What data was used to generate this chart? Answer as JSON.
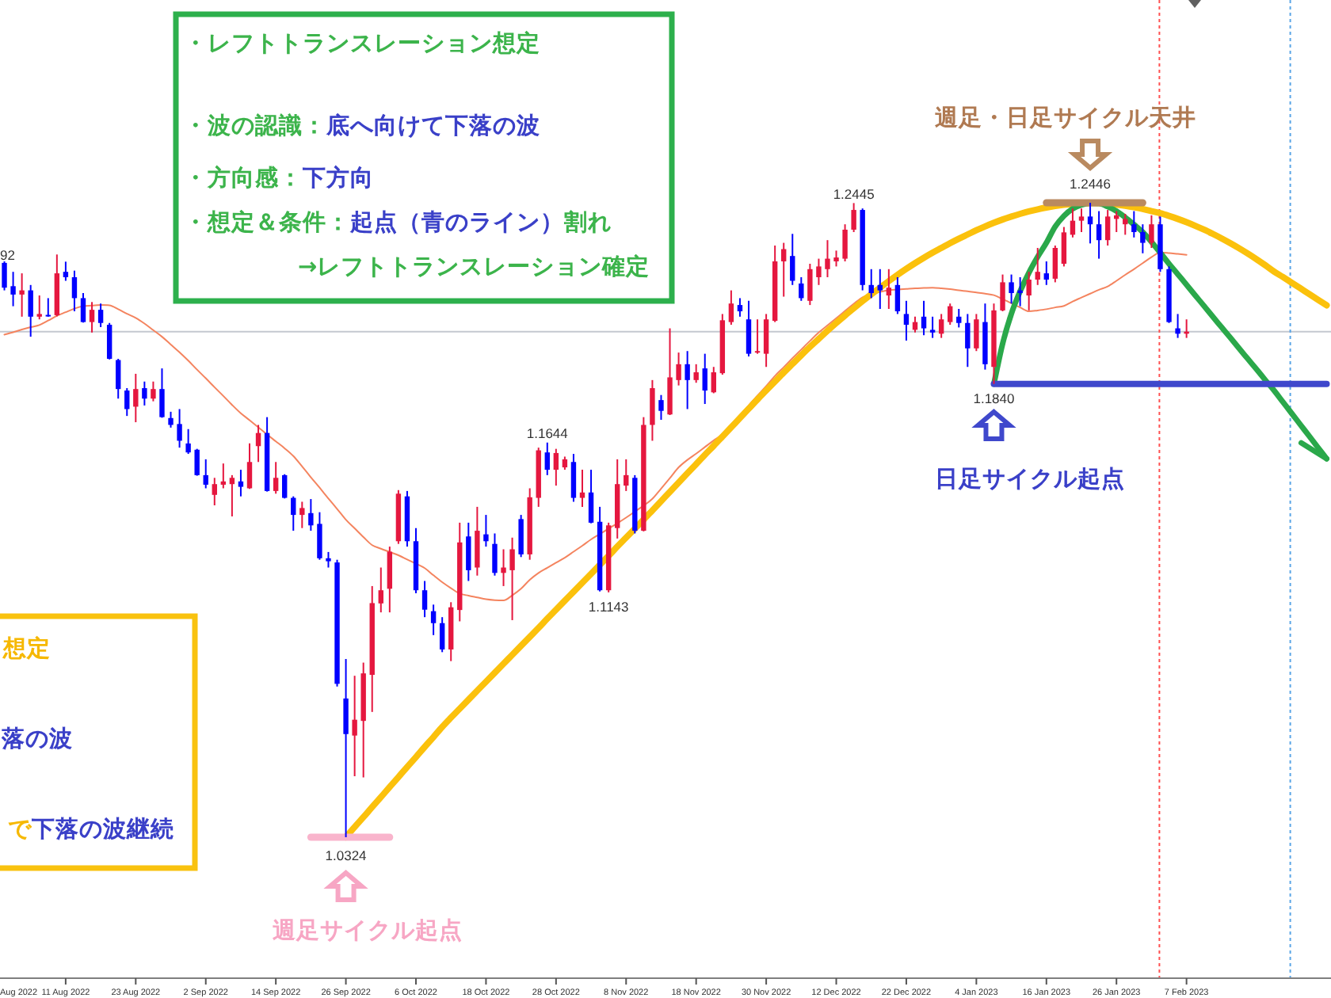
{
  "chart_data": {
    "type": "candlestick",
    "categories": [
      null,
      null,
      null,
      null,
      null,
      null,
      null,
      "11 Aug 2022",
      null,
      null,
      null,
      null,
      null,
      null,
      null,
      "23 Aug 2022",
      null,
      null,
      null,
      null,
      null,
      null,
      null,
      "2 Sep 2022",
      null,
      null,
      null,
      null,
      null,
      null,
      null,
      "14 Sep 2022",
      null,
      null,
      null,
      null,
      null,
      null,
      null,
      "26 Sep 2022",
      null,
      null,
      null,
      null,
      null,
      null,
      null,
      "6 Oct 2022",
      null,
      null,
      null,
      null,
      null,
      null,
      null,
      "18 Oct 2022",
      null,
      null,
      null,
      null,
      null,
      null,
      null,
      "28 Oct 2022",
      null,
      null,
      null,
      null,
      null,
      null,
      null,
      "8 Nov 2022",
      null,
      null,
      null,
      null,
      null,
      null,
      null,
      "18 Nov 2022",
      null,
      null,
      null,
      null,
      null,
      null,
      null,
      "30 Nov 2022",
      null,
      null,
      null,
      null,
      null,
      null,
      null,
      "12 Dec 2022",
      null,
      null,
      null,
      null,
      null,
      null,
      null,
      "22 Dec 2022",
      null,
      null,
      null,
      null,
      null,
      null,
      null,
      "4 Jan 2023",
      null,
      null,
      null,
      null,
      null,
      null,
      null,
      "16 Jan 2023",
      null,
      null,
      null,
      null,
      null,
      null,
      null,
      "26 Jan 2023",
      null,
      null,
      null,
      null,
      null,
      null,
      null,
      "7 Feb 2023",
      null,
      null,
      null,
      null,
      null,
      null,
      null,
      null,
      null,
      null,
      null,
      null,
      null,
      null,
      null,
      null
    ],
    "tick_labels": "x",
    "ohlc": [
      [
        1.2245,
        1.225,
        1.2153,
        1.2162
      ],
      [
        1.2167,
        1.2215,
        1.21,
        1.2139
      ],
      [
        1.2139,
        1.221,
        1.2065,
        1.2153
      ],
      [
        1.2153,
        1.2171,
        1.1998,
        1.2065
      ],
      [
        1.2065,
        1.2136,
        1.2056,
        1.2074
      ],
      [
        1.2071,
        1.2127,
        1.2065,
        1.2068
      ],
      [
        1.207,
        1.2273,
        1.2066,
        1.221
      ],
      [
        1.2215,
        1.2249,
        1.2185,
        1.2197
      ],
      [
        1.2197,
        1.2219,
        1.2083,
        1.2127
      ],
      [
        1.2127,
        1.2144,
        1.2045,
        1.2047
      ],
      [
        1.2047,
        1.2114,
        1.2012,
        1.2088
      ],
      [
        1.2088,
        1.2109,
        1.203,
        1.2044
      ],
      [
        1.2038,
        1.2044,
        1.1922,
        1.1924
      ],
      [
        1.192,
        1.1924,
        1.1791,
        1.1823
      ],
      [
        1.1818,
        1.1826,
        1.1733,
        1.1756
      ],
      [
        1.1764,
        1.1874,
        1.1712,
        1.1823
      ],
      [
        1.1826,
        1.1848,
        1.1768,
        1.1791
      ],
      [
        1.1791,
        1.1848,
        1.1782,
        1.1823
      ],
      [
        1.1823,
        1.1892,
        1.1727,
        1.1729
      ],
      [
        1.1726,
        1.1747,
        1.1694,
        1.1703
      ],
      [
        1.1706,
        1.1756,
        1.1627,
        1.165
      ],
      [
        1.1641,
        1.1689,
        1.1606,
        1.1611
      ],
      [
        1.162,
        1.1623,
        1.1533,
        1.1535
      ],
      [
        1.1535,
        1.1588,
        1.1491,
        1.1503
      ],
      [
        1.1469,
        1.1526,
        1.1434,
        1.1505
      ],
      [
        1.1503,
        1.1574,
        1.1491,
        1.1514
      ],
      [
        1.1505,
        1.1535,
        1.1397,
        1.1526
      ],
      [
        1.1514,
        1.1553,
        1.1464,
        1.1496
      ],
      [
        1.1491,
        1.1641,
        1.1489,
        1.1579
      ],
      [
        1.1632,
        1.1703,
        1.1579,
        1.1676
      ],
      [
        1.1676,
        1.1729,
        1.148,
        1.1482
      ],
      [
        1.1482,
        1.1579,
        1.1473,
        1.1526
      ],
      [
        1.1535,
        1.1538,
        1.1457,
        1.1459
      ],
      [
        1.1459,
        1.1464,
        1.1349,
        1.1402
      ],
      [
        1.1402,
        1.1446,
        1.1358,
        1.1425
      ],
      [
        1.1408,
        1.1455,
        1.1349,
        1.1367
      ],
      [
        1.1372,
        1.1411,
        1.1252,
        1.1257
      ],
      [
        1.1257,
        1.1278,
        1.1226,
        1.1247
      ],
      [
        1.1243,
        1.1252,
        1.0828,
        1.0837
      ],
      [
        1.0788,
        1.092,
        1.0324,
        1.0669
      ],
      [
        1.0664,
        1.0864,
        1.0528,
        1.0717
      ],
      [
        1.0713,
        1.0908,
        1.0524,
        1.0872
      ],
      [
        1.0867,
        1.1164,
        1.0743,
        1.1107
      ],
      [
        1.1106,
        1.1226,
        1.1076,
        1.115
      ],
      [
        1.1155,
        1.1296,
        1.1076,
        1.1279
      ],
      [
        1.1314,
        1.1485,
        1.1305,
        1.1473
      ],
      [
        1.1464,
        1.1482,
        1.1296,
        1.1314
      ],
      [
        1.1314,
        1.1358,
        1.114,
        1.115
      ],
      [
        1.115,
        1.1181,
        1.106,
        1.1085
      ],
      [
        1.108,
        1.1102,
        1.1,
        1.104
      ],
      [
        1.104,
        1.106,
        1.0943,
        1.0952
      ],
      [
        1.0952,
        1.111,
        1.0913,
        1.1093
      ],
      [
        1.1084,
        1.1376,
        1.1046,
        1.131
      ],
      [
        1.133,
        1.1376,
        1.1181,
        1.1217
      ],
      [
        1.1226,
        1.1429,
        1.1199,
        1.1349
      ],
      [
        1.1337,
        1.1402,
        1.1296,
        1.1314
      ],
      [
        1.1305,
        1.134,
        1.1199,
        1.1208
      ],
      [
        1.1208,
        1.1287,
        1.1164,
        1.1226
      ],
      [
        1.1217,
        1.1326,
        1.105,
        1.1287
      ],
      [
        1.1388,
        1.1402,
        1.1261,
        1.127
      ],
      [
        1.127,
        1.1491,
        1.1252,
        1.1461
      ],
      [
        1.1459,
        1.1627,
        1.1429,
        1.1618
      ],
      [
        1.1611,
        1.1644,
        1.1535,
        1.1553
      ],
      [
        1.1553,
        1.1623,
        1.15,
        1.1609
      ],
      [
        1.1561,
        1.1597,
        1.1553,
        1.1588
      ],
      [
        1.1579,
        1.1606,
        1.1446,
        1.1459
      ],
      [
        1.1459,
        1.1553,
        1.1429,
        1.1477
      ],
      [
        1.1477,
        1.1553,
        1.1374,
        1.1376
      ],
      [
        1.1379,
        1.1429,
        1.1146,
        1.115
      ],
      [
        1.115,
        1.1376,
        1.1143,
        1.1367
      ],
      [
        1.1358,
        1.1588,
        1.1323,
        1.1505
      ],
      [
        1.15,
        1.1588,
        1.1482,
        1.1535
      ],
      [
        1.1526,
        1.1535,
        1.134,
        1.1349
      ],
      [
        1.1349,
        1.1729,
        1.1347,
        1.1703
      ],
      [
        1.1703,
        1.1853,
        1.165,
        1.1826
      ],
      [
        1.1786,
        1.1803,
        1.172,
        1.175
      ],
      [
        1.1738,
        1.2026,
        1.1736,
        1.1862
      ],
      [
        1.1853,
        1.1945,
        1.1835,
        1.1906
      ],
      [
        1.1906,
        1.195,
        1.1756,
        1.1853
      ],
      [
        1.1853,
        1.1906,
        1.1844,
        1.1879
      ],
      [
        1.1892,
        1.1941,
        1.1773,
        1.1818
      ],
      [
        1.1812,
        1.1897,
        1.1809,
        1.1879
      ],
      [
        1.1876,
        1.2074,
        1.1871,
        1.2053
      ],
      [
        1.2047,
        1.2153,
        1.2038,
        1.2109
      ],
      [
        1.2104,
        1.2127,
        1.2065,
        1.2083
      ],
      [
        1.2056,
        1.2118,
        1.1932,
        1.1941
      ],
      [
        1.1945,
        1.2056,
        1.1941,
        1.195
      ],
      [
        1.1941,
        1.2074,
        1.1897,
        1.2056
      ],
      [
        1.2051,
        1.2303,
        1.2047,
        1.225
      ],
      [
        1.225,
        1.2312,
        1.2132,
        1.2291
      ],
      [
        1.2268,
        1.2342,
        1.2171,
        1.2185
      ],
      [
        1.2176,
        1.2197,
        1.2118,
        1.2127
      ],
      [
        1.2118,
        1.2242,
        1.2104,
        1.2224
      ],
      [
        1.2197,
        1.2259,
        1.2171,
        1.2233
      ],
      [
        1.2224,
        1.2321,
        1.2197,
        1.2259
      ],
      [
        1.225,
        1.2286,
        1.2233,
        1.2263
      ],
      [
        1.2259,
        1.2374,
        1.225,
        1.2356
      ],
      [
        1.2356,
        1.2445,
        1.2348,
        1.2422
      ],
      [
        1.2422,
        1.2427,
        1.2153,
        1.2171
      ],
      [
        1.2171,
        1.2224,
        1.2127,
        1.2144
      ],
      [
        1.2171,
        1.2224,
        1.2091,
        1.2153
      ],
      [
        1.2136,
        1.2224,
        1.2091,
        1.2162
      ],
      [
        1.2171,
        1.2197,
        1.2074,
        1.2083
      ],
      [
        1.2074,
        1.2118,
        1.1985,
        1.2038
      ],
      [
        1.2021,
        1.2065,
        1.2012,
        1.2047
      ],
      [
        1.2065,
        1.2118,
        1.2003,
        1.2026
      ],
      [
        1.2021,
        1.2065,
        1.1994,
        1.2012
      ],
      [
        1.2008,
        1.2074,
        1.1994,
        1.2056
      ],
      [
        1.2047,
        1.2109,
        1.2038,
        1.21
      ],
      [
        1.2065,
        1.2091,
        1.2029,
        1.2044
      ],
      [
        1.2044,
        1.2074,
        1.1897,
        1.1959
      ],
      [
        1.1959,
        1.2074,
        1.195,
        1.2056
      ],
      [
        1.2047,
        1.2109,
        1.1888,
        1.1906
      ],
      [
        1.1897,
        1.2109,
        1.184,
        1.2086
      ],
      [
        1.2086,
        1.2206,
        1.2083,
        1.218
      ],
      [
        1.218,
        1.2206,
        1.2109,
        1.2144
      ],
      [
        1.2153,
        1.2197,
        1.21,
        1.2144
      ],
      [
        1.2136,
        1.2215,
        1.2086,
        1.2189
      ],
      [
        1.2189,
        1.2295,
        1.2171,
        1.2215
      ],
      [
        1.221,
        1.225,
        1.2171,
        1.2189
      ],
      [
        1.2192,
        1.2303,
        1.218,
        1.2295
      ],
      [
        1.2242,
        1.2365,
        1.2233,
        1.2347
      ],
      [
        1.2339,
        1.2427,
        1.233,
        1.2386
      ],
      [
        1.2386,
        1.2427,
        1.2348,
        1.24
      ],
      [
        1.24,
        1.2446,
        1.231,
        1.2374
      ],
      [
        1.2374,
        1.2418,
        1.2259,
        1.2321
      ],
      [
        1.2321,
        1.2422,
        1.2303,
        1.24
      ],
      [
        1.2392,
        1.2418,
        1.2348,
        1.2404
      ],
      [
        1.2374,
        1.2409,
        1.2339,
        1.2392
      ],
      [
        1.2374,
        1.2418,
        1.233,
        1.2348
      ],
      [
        1.2348,
        1.2374,
        1.2277,
        1.2312
      ],
      [
        1.2312,
        1.2404,
        1.2295,
        1.2374
      ],
      [
        1.2374,
        1.24,
        1.2215,
        1.2224
      ],
      [
        1.2224,
        1.2233,
        1.2044,
        1.2047
      ],
      [
        1.2026,
        1.2074,
        1.1994,
        1.2008
      ],
      [
        1.2008,
        1.2056,
        1.1994,
        1.2015
      ],
      null,
      null,
      null,
      null,
      null,
      null,
      null,
      null,
      null,
      null,
      null,
      null,
      null,
      null,
      null,
      null
    ],
    "colors": [
      "#0000ff",
      "#0000ff",
      "#e5173f",
      "#0000ff",
      "#e5173f",
      "#0000ff",
      "#e5173f",
      "#0000ff",
      "#0000ff",
      "#0000ff",
      "#e5173f",
      "#0000ff",
      "#0000ff",
      "#0000ff",
      "#0000ff",
      "#e5173f",
      "#0000ff",
      "#e5173f",
      "#0000ff",
      "#0000ff",
      "#0000ff",
      "#0000ff",
      "#0000ff",
      "#0000ff",
      "#e5173f",
      "#e5173f",
      "#e5173f",
      "#0000ff",
      "#e5173f",
      "#e5173f",
      "#0000ff",
      "#e5173f",
      "#0000ff",
      "#0000ff",
      "#e5173f",
      "#0000ff",
      "#0000ff",
      "#0000ff",
      "#0000ff",
      "#0000ff",
      "#e5173f",
      "#e5173f",
      "#e5173f",
      "#e5173f",
      "#e5173f",
      "#e5173f",
      "#0000ff",
      "#0000ff",
      "#0000ff",
      "#0000ff",
      "#0000ff",
      "#e5173f",
      "#e5173f",
      "#0000ff",
      "#e5173f",
      "#0000ff",
      "#0000ff",
      "#e5173f",
      "#e5173f",
      "#0000ff",
      "#e5173f",
      "#e5173f",
      "#0000ff",
      "#e5173f",
      "#e5173f",
      "#0000ff",
      "#e5173f",
      "#0000ff",
      "#0000ff",
      "#e5173f",
      "#e5173f",
      "#e5173f",
      "#0000ff",
      "#e5173f",
      "#e5173f",
      "#0000ff",
      "#e5173f",
      "#e5173f",
      "#0000ff",
      "#e5173f",
      "#0000ff",
      "#e5173f",
      "#e5173f",
      "#e5173f",
      "#0000ff",
      "#0000ff",
      "#e5173f",
      "#e5173f",
      "#e5173f",
      "#e5173f",
      "#0000ff",
      "#0000ff",
      "#e5173f",
      "#e5173f",
      "#e5173f",
      "#e5173f",
      "#e5173f",
      "#e5173f",
      "#0000ff",
      "#0000ff",
      "#0000ff",
      "#e5173f",
      "#0000ff",
      "#0000ff",
      "#e5173f",
      "#0000ff",
      "#0000ff",
      "#e5173f",
      "#e5173f",
      "#0000ff",
      "#0000ff",
      "#e5173f",
      "#0000ff",
      "#e5173f",
      "#e5173f",
      "#0000ff",
      "#0000ff",
      "#e5173f",
      "#e5173f",
      "#0000ff",
      "#e5173f",
      "#e5173f",
      "#e5173f",
      "#e5173f",
      "#0000ff",
      "#0000ff",
      "#e5173f",
      "#e5173f",
      "#e5173f",
      "#0000ff",
      "#0000ff",
      "#e5173f",
      "#0000ff",
      "#0000ff",
      "#0000ff",
      "#e5173f",
      null,
      null,
      null,
      null,
      null,
      null,
      null,
      null,
      null,
      null,
      null,
      null,
      null,
      null,
      null,
      null
    ],
    "series": [
      {
        "type": "line",
        "color": "#f4845f",
        "values": [
          1.2005,
          1.2013,
          1.2022,
          1.203,
          1.2037,
          1.2052,
          1.2068,
          1.208,
          1.2092,
          1.21,
          1.2102,
          1.2104,
          1.2103,
          1.209,
          1.2075,
          1.2061,
          1.2042,
          1.202,
          1.1998,
          1.1972,
          1.1946,
          1.1918,
          1.1888,
          1.1859,
          1.1829,
          1.18,
          1.177,
          1.1742,
          1.1719,
          1.1695,
          1.1671,
          1.1648,
          1.1625,
          1.1599,
          1.1564,
          1.1528,
          1.1493,
          1.1457,
          1.1422,
          1.1386,
          1.1357,
          1.1328,
          1.1301,
          1.1289,
          1.1278,
          1.1267,
          1.1253,
          1.1239,
          1.1224,
          1.12,
          1.1177,
          1.1157,
          1.1139,
          1.1132,
          1.1126,
          1.112,
          1.1117,
          1.1116,
          1.1133,
          1.1155,
          1.1185,
          1.1208,
          1.1225,
          1.1242,
          1.1259,
          1.1279,
          1.1299,
          1.132,
          1.1338,
          1.1356,
          1.1374,
          1.1393,
          1.1413,
          1.1433,
          1.1456,
          1.149,
          1.1525,
          1.1561,
          1.1586,
          1.1607,
          1.1629,
          1.1651,
          1.1672,
          1.1703,
          1.1735,
          1.1768,
          1.1801,
          1.1833,
          1.1867,
          1.1896,
          1.1926,
          1.1955,
          1.1984,
          1.2012,
          1.2036,
          1.206,
          1.2084,
          1.2108,
          1.213,
          1.2139,
          1.2148,
          1.2154,
          1.2156,
          1.2158,
          1.216,
          1.2161,
          1.2162,
          1.216,
          1.2157,
          1.2153,
          1.215,
          1.2146,
          1.2142,
          1.2137,
          1.2124,
          1.211,
          1.2096,
          1.2083,
          1.2086,
          1.209,
          1.2096,
          1.2101,
          1.2116,
          1.2129,
          1.2142,
          1.2155,
          1.2166,
          1.2185,
          1.2205,
          1.2224,
          1.2244,
          1.2264,
          1.228,
          1.2278,
          1.2275,
          1.2272,
          null,
          null,
          null,
          null,
          null,
          null,
          null,
          null,
          null,
          null,
          null,
          null,
          null,
          null,
          null,
          null
        ]
      },
      {
        "type": "line",
        "color": "#fbc10c",
        "values": [
          null,
          null,
          null,
          null,
          null,
          null,
          null,
          null,
          null,
          null,
          null,
          null,
          null,
          null,
          null,
          null,
          null,
          null,
          null,
          null,
          null,
          null,
          null,
          null,
          null,
          null,
          null,
          null,
          null,
          null,
          null,
          null,
          null,
          null,
          null,
          null,
          null,
          null,
          null,
          1.0324,
          1.0358,
          1.0391,
          1.0425,
          1.0458,
          1.0492,
          1.0525,
          1.0559,
          1.0592,
          1.0626,
          1.0659,
          1.0693,
          1.0724,
          1.0754,
          1.0784,
          1.0814,
          1.0844,
          1.0874,
          1.0904,
          1.0934,
          1.0964,
          1.0994,
          1.1024,
          1.1055,
          1.1085,
          1.1115,
          1.1145,
          1.1175,
          1.1205,
          1.1235,
          1.1265,
          1.1296,
          1.1326,
          1.1356,
          1.1386,
          1.1417,
          1.1448,
          1.1479,
          1.151,
          1.1541,
          1.1572,
          1.1603,
          1.1633,
          1.1664,
          1.1695,
          1.1726,
          1.1757,
          1.1788,
          1.1818,
          1.1848,
          1.1878,
          1.1907,
          1.1936,
          1.1964,
          1.1991,
          1.2018,
          1.2044,
          1.2069,
          1.2093,
          1.2117,
          1.214,
          1.2162,
          1.2184,
          1.2205,
          1.2225,
          1.2244,
          1.2262,
          1.2279,
          1.2295,
          1.2311,
          1.2326,
          1.234,
          1.2354,
          1.2367,
          1.2379,
          1.239,
          1.24,
          1.2409,
          1.2417,
          1.2424,
          1.243,
          1.2435,
          1.2439,
          1.2442,
          1.2444,
          1.2445,
          1.2445,
          1.2443,
          1.244,
          1.2436,
          1.2431,
          1.2425,
          1.2418,
          1.2411,
          1.2402,
          1.2392,
          1.2381,
          1.2369,
          1.2356,
          1.2342,
          1.2327,
          1.2311,
          1.2294,
          1.2276,
          1.2257,
          1.2237,
          1.2216,
          1.2198,
          1.2179,
          1.216,
          1.2141,
          1.2122,
          1.2103
        ]
      },
      {
        "type": "line",
        "color": "#2aa84a",
        "values": [
          null,
          null,
          null,
          null,
          null,
          null,
          null,
          null,
          null,
          null,
          null,
          null,
          null,
          null,
          null,
          null,
          null,
          null,
          null,
          null,
          null,
          null,
          null,
          null,
          null,
          null,
          null,
          null,
          null,
          null,
          null,
          null,
          null,
          null,
          null,
          null,
          null,
          null,
          null,
          null,
          null,
          null,
          null,
          null,
          null,
          null,
          null,
          null,
          null,
          null,
          null,
          null,
          null,
          null,
          null,
          null,
          null,
          null,
          null,
          null,
          null,
          null,
          null,
          null,
          null,
          null,
          null,
          null,
          null,
          null,
          null,
          null,
          null,
          null,
          null,
          null,
          null,
          null,
          null,
          null,
          null,
          null,
          null,
          null,
          null,
          null,
          null,
          null,
          null,
          null,
          null,
          null,
          null,
          null,
          null,
          null,
          null,
          null,
          null,
          null,
          null,
          null,
          null,
          null,
          null,
          null,
          null,
          null,
          null,
          null,
          null,
          null,
          null,
          1.184,
          1.1975,
          1.2075,
          1.215,
          1.2212,
          1.2265,
          1.2312,
          1.2366,
          1.2402,
          1.2426,
          1.2439,
          1.2445,
          1.2444,
          1.2433,
          1.2418,
          1.2397,
          1.2373,
          1.2348,
          1.2315,
          1.2279,
          1.2242,
          1.2207,
          1.2172,
          1.2136,
          1.2101,
          1.2065,
          1.203,
          1.1995,
          1.1959,
          1.1924,
          1.1889,
          1.1853,
          1.1818,
          1.178,
          1.1742,
          1.1704,
          1.1666,
          1.1628,
          1.159
        ]
      },
      {
        "type": "line",
        "color": "#3f48cc",
        "values": [
          null,
          null,
          null,
          null,
          null,
          null,
          null,
          null,
          null,
          null,
          null,
          null,
          null,
          null,
          null,
          null,
          null,
          null,
          null,
          null,
          null,
          null,
          null,
          null,
          null,
          null,
          null,
          null,
          null,
          null,
          null,
          null,
          null,
          null,
          null,
          null,
          null,
          null,
          null,
          null,
          null,
          null,
          null,
          null,
          null,
          null,
          null,
          null,
          null,
          null,
          null,
          null,
          null,
          null,
          null,
          null,
          null,
          null,
          null,
          null,
          null,
          null,
          null,
          null,
          null,
          null,
          null,
          null,
          null,
          null,
          null,
          null,
          null,
          null,
          null,
          null,
          null,
          null,
          null,
          null,
          null,
          null,
          null,
          null,
          null,
          null,
          null,
          null,
          null,
          null,
          null,
          null,
          null,
          null,
          null,
          null,
          null,
          null,
          null,
          null,
          null,
          null,
          null,
          null,
          null,
          null,
          null,
          null,
          null,
          null,
          null,
          null,
          null,
          1.184,
          1.184,
          1.184,
          1.184,
          1.184,
          1.184,
          1.184,
          1.184,
          1.184,
          1.184,
          1.184,
          1.184,
          1.184,
          1.184,
          1.184,
          1.184,
          1.184,
          1.184,
          1.184,
          1.184,
          1.184,
          1.184,
          1.184,
          1.184,
          1.184,
          1.184,
          1.184,
          1.184,
          1.184,
          1.184,
          1.184,
          1.184,
          1.184,
          1.184,
          1.184,
          1.184,
          1.184,
          1.184,
          1.184
        ]
      },
      {
        "type": "line",
        "color": "#f9b4cc",
        "values": [
          null,
          null,
          null,
          null,
          null,
          null,
          null,
          null,
          null,
          null,
          null,
          null,
          null,
          null,
          null,
          null,
          null,
          null,
          null,
          null,
          null,
          null,
          null,
          null,
          null,
          null,
          null,
          null,
          null,
          null,
          null,
          null,
          null,
          null,
          null,
          1.0324,
          1.0324,
          1.0324,
          1.0324,
          1.0324,
          1.0324,
          1.0324,
          1.0324,
          1.0324,
          1.0324,
          null,
          null,
          null,
          null,
          null,
          null,
          null,
          null,
          null,
          null,
          null,
          null,
          null,
          null,
          null,
          null,
          null,
          null,
          null,
          null,
          null,
          null,
          null,
          null,
          null,
          null,
          null,
          null,
          null,
          null,
          null,
          null,
          null,
          null,
          null,
          null,
          null,
          null,
          null,
          null,
          null,
          null,
          null,
          null,
          null,
          null,
          null,
          null,
          null,
          null,
          null,
          null,
          null,
          null,
          null,
          null,
          null,
          null,
          null,
          null,
          null,
          null,
          null,
          null,
          null,
          null,
          null,
          null,
          null,
          null,
          null,
          null,
          null,
          null,
          null,
          null,
          null,
          null,
          null,
          null,
          null,
          null,
          null,
          null,
          null,
          null,
          null,
          null,
          null,
          null,
          null,
          null,
          null,
          null,
          null,
          null,
          null,
          null,
          null,
          null,
          null,
          null,
          null,
          null,
          null,
          null,
          null
        ]
      },
      {
        "type": "line",
        "color": "#b98a60",
        "values": [
          null,
          null,
          null,
          null,
          null,
          null,
          null,
          null,
          null,
          null,
          null,
          null,
          null,
          null,
          null,
          null,
          null,
          null,
          null,
          null,
          null,
          null,
          null,
          null,
          null,
          null,
          null,
          null,
          null,
          null,
          null,
          null,
          null,
          null,
          null,
          null,
          null,
          null,
          null,
          null,
          null,
          null,
          null,
          null,
          null,
          null,
          null,
          null,
          null,
          null,
          null,
          null,
          null,
          null,
          null,
          null,
          null,
          null,
          null,
          null,
          null,
          null,
          null,
          null,
          null,
          null,
          null,
          null,
          null,
          null,
          null,
          null,
          null,
          null,
          null,
          null,
          null,
          null,
          null,
          null,
          null,
          null,
          null,
          null,
          null,
          null,
          null,
          null,
          null,
          null,
          null,
          null,
          null,
          null,
          null,
          null,
          null,
          null,
          null,
          null,
          null,
          null,
          null,
          null,
          null,
          null,
          null,
          null,
          null,
          null,
          null,
          null,
          null,
          null,
          null,
          null,
          null,
          null,
          null,
          1.2446,
          1.2446,
          1.2446,
          1.2446,
          1.2446,
          1.2446,
          1.2446,
          1.2446,
          1.2446,
          1.2446,
          1.2446,
          1.2446,
          null,
          null,
          null,
          null,
          null,
          null,
          null,
          null,
          null,
          null,
          null,
          null,
          null,
          null,
          null,
          null,
          null,
          null,
          null,
          null,
          null
        ]
      }
    ],
    "ref_lines": [
      {
        "axis": "y",
        "value": 1.2015,
        "color": "#c4c8d0"
      }
    ],
    "annotations": [
      "・レフトトランスレーション想定",
      "・波の認識：",
      "底へ向けて下落の波",
      "・方向感：",
      "下方向",
      "・想定＆条件：",
      "起点（青のライン）",
      "割れ",
      "→レフトトランスレーション確定",
      "想定",
      "落の波",
      "で",
      "下落の波継続",
      "週足・日足サイクル天井",
      "日足サイクル起点",
      "週足サイクル起点",
      {
        "text": "1.0324",
        "x": "26 Sep 2022",
        "y": 1.0324
      },
      {
        "text": "1.1143",
        "y": 1.1143
      },
      {
        "text": "1.1644",
        "y": 1.1644
      },
      {
        "text": "1.1840",
        "y": 1.184
      },
      {
        "text": "1.2445",
        "y": 1.2445
      },
      {
        "text": "1.2446",
        "y": 1.2446
      },
      "92",
      "Aug 2022"
    ]
  }
}
